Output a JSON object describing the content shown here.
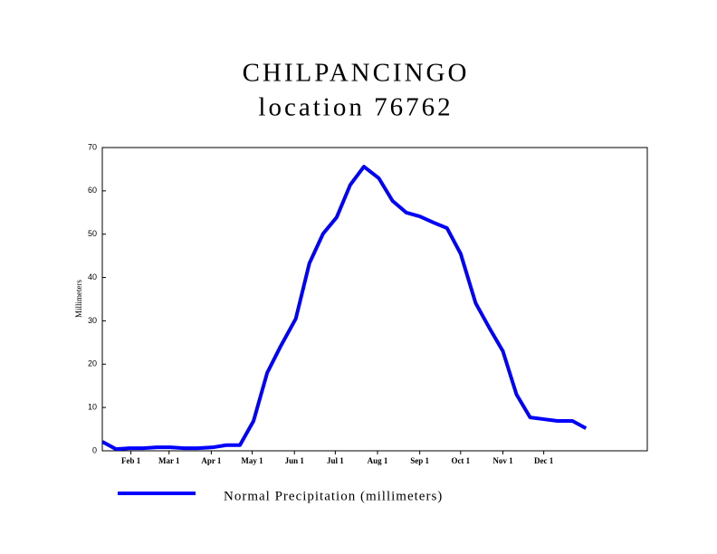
{
  "chart_data": {
    "type": "line",
    "title": "CHILPANCINGO",
    "subtitle": "location 76762",
    "y_label": "Millimeters",
    "x": [
      11,
      21,
      31,
      41,
      51,
      61,
      71,
      81,
      92,
      102,
      112,
      122,
      132,
      142,
      153,
      163,
      173,
      183,
      193,
      203,
      214,
      224,
      234,
      244,
      254,
      264,
      274,
      285,
      295,
      305,
      315,
      325,
      335,
      345,
      356,
      366
    ],
    "series": [
      {
        "name": "Normal Precipitation (millimeters)",
        "color": "#0000ff",
        "values": [
          2.1,
          0.4,
          0.6,
          0.6,
          0.8,
          0.8,
          0.6,
          0.6,
          0.8,
          1.3,
          1.3,
          6.9,
          18.0,
          24.2,
          30.5,
          43.3,
          50.1,
          53.9,
          61.4,
          65.6,
          62.9,
          57.7,
          55.0,
          54.1,
          52.7,
          51.4,
          45.5,
          34.1,
          28.4,
          23.0,
          13.0,
          7.7,
          7.3,
          6.9,
          6.9,
          5.2
        ]
      }
    ],
    "xlim": [
      11,
      411
    ],
    "xticks": [
      {
        "value": 32,
        "label": "Feb 1"
      },
      {
        "value": 60,
        "label": "Mar 1"
      },
      {
        "value": 91,
        "label": "Apr 1"
      },
      {
        "value": 121,
        "label": "May 1"
      },
      {
        "value": 152,
        "label": "Jun 1"
      },
      {
        "value": 182,
        "label": "Jul 1"
      },
      {
        "value": 213,
        "label": "Aug 1"
      },
      {
        "value": 244,
        "label": "Sep 1"
      },
      {
        "value": 274,
        "label": "Oct 1"
      },
      {
        "value": 305,
        "label": "Nov 1"
      },
      {
        "value": 335,
        "label": "Dec 1"
      }
    ],
    "ylim": [
      0,
      70
    ],
    "yticks": [
      0,
      10,
      20,
      30,
      40,
      50,
      60,
      70
    ],
    "grid": false
  }
}
